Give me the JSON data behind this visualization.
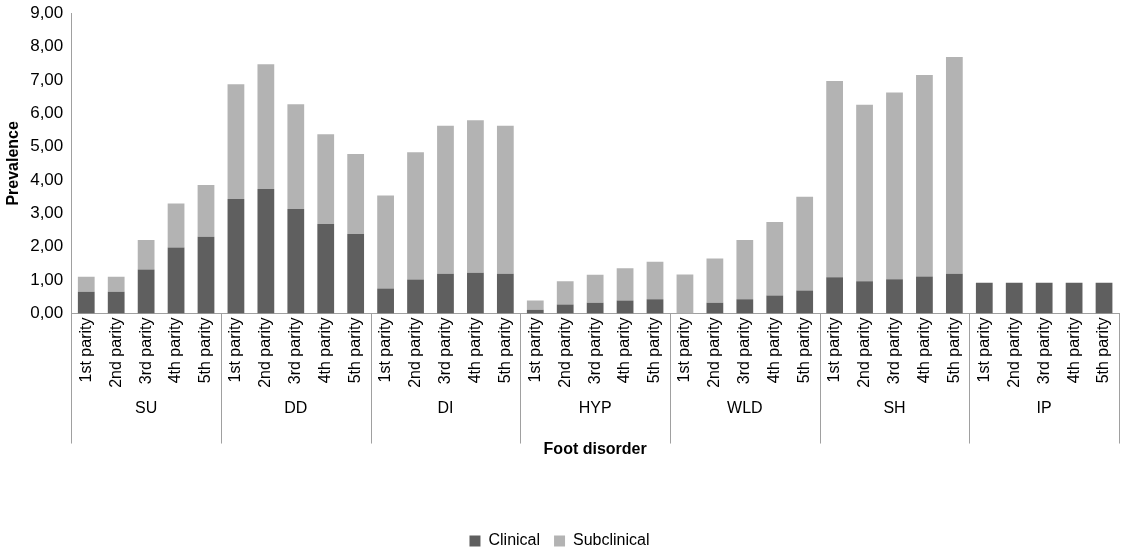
{
  "chart_data": {
    "type": "bar",
    "stacked": true,
    "xlabel": "Foot disorder",
    "ylabel": "Prevalence",
    "legend": "bottom",
    "grid": false,
    "categories": [
      "1st parity",
      "2nd parity",
      "3rd parity",
      "4th parity",
      "5th parity",
      "1st parity",
      "2nd parity",
      "3rd parity",
      "4th parity",
      "5th parity",
      "1st parity",
      "2nd parity",
      "3rd parity",
      "4th parity",
      "5th parity",
      "1st parity",
      "2nd parity",
      "3rd parity",
      "4th parity",
      "5th parity",
      "1st parity",
      "2nd parity",
      "3rd parity",
      "4th parity",
      "5th parity",
      "1st parity",
      "2nd parity",
      "3rd parity",
      "4th parity",
      "5th parity",
      "1st parity",
      "2nd parity",
      "3rd parity",
      "4th parity",
      "5th parity"
    ],
    "annotations": [
      "SU",
      "DD",
      "DI",
      "HYP",
      "WLD",
      "SH",
      "IP"
    ],
    "series": [
      {
        "name": "Clinical",
        "color": "#5f5f5f",
        "values": [
          0.65,
          0.65,
          1.32,
          1.98,
          2.3,
          3.43,
          3.73,
          3.13,
          2.68,
          2.38,
          0.75,
          1.02,
          1.19,
          1.22,
          1.19,
          0.11,
          0.27,
          0.32,
          0.39,
          0.43,
          0,
          0.32,
          0.43,
          0.54,
          0.69,
          1.09,
          0.97,
          1.03,
          1.11,
          1.19,
          0.92,
          0.92,
          0.92,
          0.92,
          0.92
        ]
      },
      {
        "name": "Subclinical",
        "color": "#b3b3b3",
        "values": [
          0.45,
          0.45,
          0.88,
          1.32,
          1.55,
          3.44,
          3.74,
          3.14,
          2.69,
          2.4,
          2.79,
          3.81,
          4.44,
          4.57,
          4.44,
          0.28,
          0.7,
          0.84,
          0.97,
          1.12,
          1.17,
          1.33,
          1.77,
          2.2,
          2.81,
          5.88,
          5.29,
          5.59,
          6.04,
          6.5,
          0,
          0,
          0,
          0,
          0
        ]
      }
    ],
    "ylim": [
      0,
      9
    ],
    "yticks": [
      {
        "value": 0,
        "label": "0,00"
      },
      {
        "value": 1,
        "label": "1,00"
      },
      {
        "value": 2,
        "label": "2,00"
      },
      {
        "value": 3,
        "label": "3,00"
      },
      {
        "value": 4,
        "label": "4,00"
      },
      {
        "value": 5,
        "label": "5,00"
      },
      {
        "value": 6,
        "label": "6,00"
      },
      {
        "value": 7,
        "label": "7,00"
      },
      {
        "value": 8,
        "label": "8,00"
      },
      {
        "value": 9,
        "label": "9,00"
      }
    ]
  }
}
